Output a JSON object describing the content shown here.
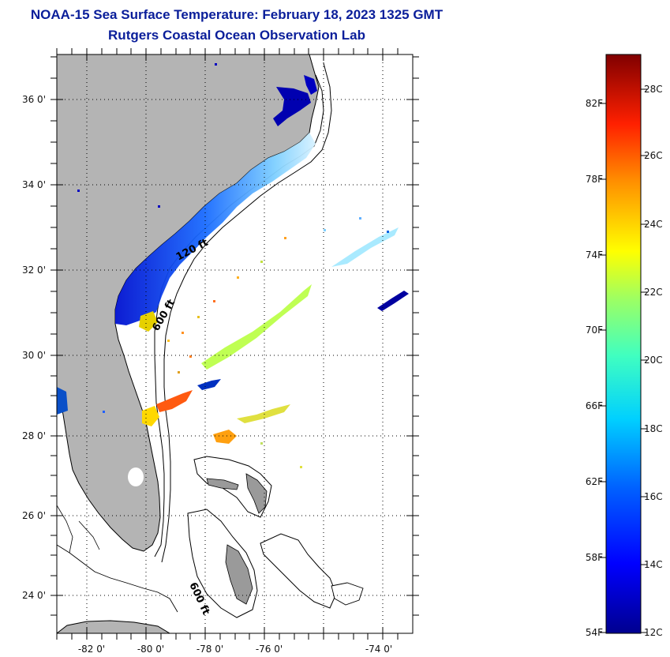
{
  "header": {
    "title": "NOAA-15 Sea Surface Temperature:  February 18, 2023 1325 GMT",
    "subtitle": "Rutgers Coastal Ocean Observation Lab"
  },
  "map": {
    "lat_labels": [
      "36 0'",
      "34 0'",
      "32 0'",
      "30 0'",
      "28 0'",
      "26 0'",
      "24 0'"
    ],
    "lon_labels": [
      "-82 0'",
      "-80 0'",
      "-78 0'",
      "-76 0'",
      "-74 0'"
    ],
    "depth_labels": [
      "120 ft",
      "600 ft",
      "600 ft"
    ],
    "colors": {
      "land": "#b4b4b4",
      "frame": "#000000"
    }
  },
  "colorbar": {
    "fahrenheit_labels": [
      "82F",
      "78F",
      "74F",
      "70F",
      "66F",
      "62F",
      "58F",
      "54F"
    ],
    "celsius_labels": [
      "28C",
      "26C",
      "24C",
      "22C",
      "20C",
      "18C",
      "16C",
      "14C",
      "12C"
    ]
  }
}
